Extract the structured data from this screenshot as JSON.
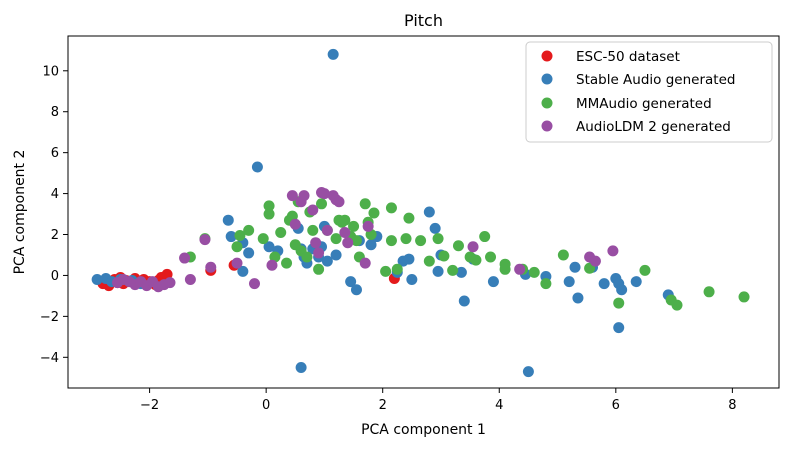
{
  "chart_data": {
    "type": "scatter",
    "title": "Pitch",
    "xlabel": "PCA component 1",
    "ylabel": "PCA component 2",
    "xlim": [
      -3.4,
      8.8
    ],
    "ylim": [
      -5.5,
      11.7
    ],
    "xticks": [
      -2,
      0,
      2,
      4,
      6,
      8
    ],
    "yticks": [
      -4,
      -2,
      0,
      2,
      4,
      6,
      8,
      10
    ],
    "grid": false,
    "legend_position": "top-right",
    "series": [
      {
        "name": "ESC-50 dataset",
        "color": "#e41a1c",
        "points": [
          [
            -2.8,
            -0.4
          ],
          [
            -2.7,
            -0.5
          ],
          [
            -2.6,
            -0.2
          ],
          [
            -2.55,
            -0.35
          ],
          [
            -2.5,
            -0.1
          ],
          [
            -2.45,
            -0.4
          ],
          [
            -2.4,
            -0.25
          ],
          [
            -2.35,
            -0.3
          ],
          [
            -2.25,
            -0.15
          ],
          [
            -2.2,
            -0.35
          ],
          [
            -2.1,
            -0.2
          ],
          [
            -2.05,
            -0.4
          ],
          [
            -2.0,
            -0.3
          ],
          [
            -1.9,
            -0.45
          ],
          [
            -1.85,
            -0.25
          ],
          [
            -1.8,
            -0.1
          ],
          [
            -1.75,
            -0.35
          ],
          [
            -1.7,
            0.05
          ],
          [
            -0.55,
            0.5
          ],
          [
            -0.95,
            0.25
          ],
          [
            2.2,
            -0.15
          ]
        ]
      },
      {
        "name": "Stable Audio generated",
        "color": "#377eb8",
        "points": [
          [
            1.15,
            10.8
          ],
          [
            -0.15,
            5.3
          ],
          [
            -0.65,
            2.7
          ],
          [
            -0.6,
            1.9
          ],
          [
            -0.4,
            1.6
          ],
          [
            -0.3,
            1.1
          ],
          [
            -0.4,
            0.2
          ],
          [
            0.05,
            1.4
          ],
          [
            0.2,
            1.2
          ],
          [
            0.55,
            2.3
          ],
          [
            0.6,
            1.3
          ],
          [
            0.65,
            0.9
          ],
          [
            0.7,
            0.6
          ],
          [
            0.8,
            1.3
          ],
          [
            0.9,
            0.9
          ],
          [
            0.95,
            1.4
          ],
          [
            1.0,
            2.4
          ],
          [
            1.05,
            0.7
          ],
          [
            1.2,
            1.0
          ],
          [
            1.45,
            -0.3
          ],
          [
            1.55,
            -0.7
          ],
          [
            1.6,
            1.7
          ],
          [
            1.8,
            1.5
          ],
          [
            1.9,
            1.9
          ],
          [
            2.25,
            0.15
          ],
          [
            2.35,
            0.7
          ],
          [
            2.45,
            0.8
          ],
          [
            2.5,
            -0.2
          ],
          [
            2.8,
            3.1
          ],
          [
            2.9,
            2.3
          ],
          [
            2.95,
            0.2
          ],
          [
            3.0,
            1.0
          ],
          [
            3.35,
            0.15
          ],
          [
            3.4,
            -1.25
          ],
          [
            3.55,
            0.8
          ],
          [
            3.9,
            -0.3
          ],
          [
            4.45,
            0.05
          ],
          [
            4.5,
            -4.7
          ],
          [
            4.8,
            -0.05
          ],
          [
            5.2,
            -0.3
          ],
          [
            5.3,
            0.4
          ],
          [
            5.35,
            -1.1
          ],
          [
            5.6,
            0.4
          ],
          [
            5.8,
            -0.4
          ],
          [
            6.0,
            -0.15
          ],
          [
            6.05,
            -0.4
          ],
          [
            6.05,
            -2.55
          ],
          [
            6.1,
            -0.7
          ],
          [
            6.35,
            -0.3
          ],
          [
            6.9,
            -0.95
          ],
          [
            0.6,
            -4.5
          ],
          [
            -2.9,
            -0.2
          ],
          [
            -2.75,
            -0.15
          ],
          [
            -2.65,
            -0.3
          ],
          [
            -2.5,
            -0.2
          ],
          [
            -2.3,
            -0.25
          ],
          [
            -2.15,
            -0.4
          ]
        ]
      },
      {
        "name": "MMAudio generated",
        "color": "#4daf4a",
        "points": [
          [
            -1.3,
            0.9
          ],
          [
            -1.05,
            1.8
          ],
          [
            -0.5,
            1.4
          ],
          [
            -0.45,
            1.95
          ],
          [
            -0.3,
            2.2
          ],
          [
            -0.05,
            1.8
          ],
          [
            0.05,
            3.0
          ],
          [
            0.05,
            3.4
          ],
          [
            0.15,
            0.9
          ],
          [
            0.25,
            2.1
          ],
          [
            0.35,
            0.6
          ],
          [
            0.4,
            2.7
          ],
          [
            0.45,
            2.9
          ],
          [
            0.5,
            1.5
          ],
          [
            0.55,
            3.6
          ],
          [
            0.6,
            1.2
          ],
          [
            0.7,
            0.9
          ],
          [
            0.75,
            3.1
          ],
          [
            0.8,
            2.2
          ],
          [
            0.9,
            0.3
          ],
          [
            0.95,
            3.5
          ],
          [
            1.05,
            2.2
          ],
          [
            1.2,
            1.8
          ],
          [
            1.25,
            2.7
          ],
          [
            1.3,
            2.6
          ],
          [
            1.45,
            1.9
          ],
          [
            1.5,
            2.4
          ],
          [
            1.55,
            1.7
          ],
          [
            1.6,
            0.9
          ],
          [
            1.7,
            3.5
          ],
          [
            1.75,
            2.6
          ],
          [
            1.8,
            2.0
          ],
          [
            1.85,
            3.05
          ],
          [
            2.05,
            0.2
          ],
          [
            2.15,
            1.7
          ],
          [
            2.15,
            3.3
          ],
          [
            2.25,
            0.3
          ],
          [
            2.4,
            1.8
          ],
          [
            2.45,
            2.8
          ],
          [
            2.65,
            1.7
          ],
          [
            2.8,
            0.7
          ],
          [
            2.95,
            1.8
          ],
          [
            3.05,
            0.95
          ],
          [
            3.2,
            0.25
          ],
          [
            3.3,
            1.45
          ],
          [
            3.5,
            0.9
          ],
          [
            3.6,
            0.75
          ],
          [
            3.75,
            1.9
          ],
          [
            3.85,
            0.9
          ],
          [
            4.1,
            0.55
          ],
          [
            4.1,
            0.3
          ],
          [
            4.4,
            0.3
          ],
          [
            4.6,
            0.15
          ],
          [
            4.8,
            -0.4
          ],
          [
            5.1,
            1.0
          ],
          [
            5.55,
            0.35
          ],
          [
            6.05,
            -1.35
          ],
          [
            6.5,
            0.25
          ],
          [
            6.95,
            -1.2
          ],
          [
            7.05,
            -1.45
          ],
          [
            7.6,
            -0.8
          ],
          [
            8.2,
            -1.05
          ],
          [
            1.35,
            2.7
          ]
        ]
      },
      {
        "name": "AudioLDM 2 generated",
        "color": "#984ea3",
        "points": [
          [
            -2.55,
            -0.35
          ],
          [
            -2.45,
            -0.2
          ],
          [
            -2.35,
            -0.3
          ],
          [
            -2.25,
            -0.45
          ],
          [
            -2.15,
            -0.3
          ],
          [
            -2.05,
            -0.5
          ],
          [
            -1.95,
            -0.3
          ],
          [
            -1.85,
            -0.55
          ],
          [
            -1.75,
            -0.45
          ],
          [
            -1.65,
            -0.35
          ],
          [
            -1.4,
            0.85
          ],
          [
            -1.3,
            -0.2
          ],
          [
            -1.05,
            1.75
          ],
          [
            -0.95,
            0.4
          ],
          [
            -0.5,
            0.6
          ],
          [
            -0.2,
            -0.4
          ],
          [
            0.1,
            0.5
          ],
          [
            0.45,
            3.9
          ],
          [
            0.5,
            2.5
          ],
          [
            0.6,
            3.6
          ],
          [
            0.65,
            3.9
          ],
          [
            0.8,
            3.2
          ],
          [
            0.85,
            1.6
          ],
          [
            0.9,
            1.1
          ],
          [
            0.95,
            4.05
          ],
          [
            1.0,
            4.0
          ],
          [
            1.05,
            2.2
          ],
          [
            1.15,
            3.9
          ],
          [
            1.2,
            3.7
          ],
          [
            1.25,
            3.6
          ],
          [
            1.35,
            2.1
          ],
          [
            1.4,
            1.6
          ],
          [
            1.7,
            0.6
          ],
          [
            1.75,
            2.4
          ],
          [
            3.55,
            1.4
          ],
          [
            4.35,
            0.3
          ],
          [
            5.55,
            0.9
          ],
          [
            5.65,
            0.7
          ],
          [
            5.95,
            1.2
          ]
        ]
      }
    ]
  }
}
